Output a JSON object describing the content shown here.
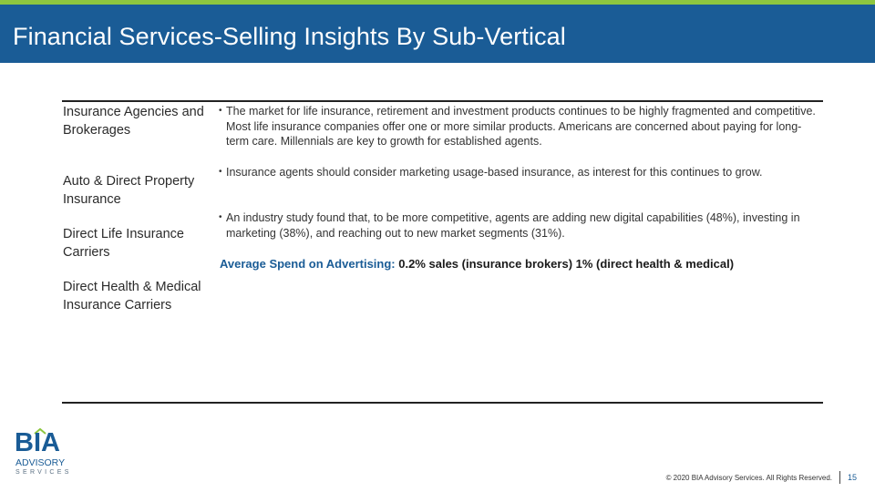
{
  "slide": {
    "title": "Financial Services-Selling Insights By Sub-Vertical"
  },
  "categories": [
    "Insurance Agencies and Brokerages",
    "Auto & Direct Property Insurance",
    "Direct Life Insurance Carriers",
    "Direct Health & Medical Insurance Carriers"
  ],
  "bullets": [
    "The market for life insurance, retirement and investment products continues to be highly fragmented and competitive. Most life insurance companies offer one or more similar products. Americans are concerned about paying for long-term care. Millennials are key to growth for established agents.",
    "Insurance agents should consider marketing usage-based insurance, as interest for this continues to grow.",
    "An industry study found that, to be more competitive, agents are adding new digital capabilities (48%), investing in marketing (38%), and reaching out to new market segments (31%)."
  ],
  "spend": {
    "label": "Average Spend on Advertising:",
    "value": "0.2% sales (insurance brokers) 1% (direct health & medical)"
  },
  "logo": {
    "name": "BIA",
    "line1": "ADVISORY",
    "line2": "SERVICES",
    "color": "#1a5c96",
    "accent": "#8dc63f"
  },
  "footer": {
    "copyright": "© 2020 BIA Advisory Services. All Rights Reserved.",
    "page": "15"
  }
}
